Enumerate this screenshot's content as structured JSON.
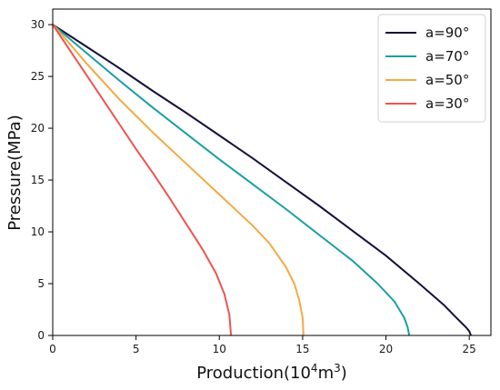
{
  "chart_data": {
    "type": "line",
    "title": "",
    "xlabel": "Production(10",
    "xlabel_sup": "4",
    "xlabel_mid": "m",
    "xlabel_sup2": "3",
    "xlabel_end": ")",
    "ylabel": "Pressure(MPa)",
    "xlim": [
      0,
      26.3
    ],
    "ylim": [
      0,
      31.5
    ],
    "xticks": [
      0,
      5,
      10,
      15,
      20,
      25
    ],
    "yticks": [
      0,
      5,
      10,
      15,
      20,
      25,
      30
    ],
    "grid": false,
    "legend_position": "top-right",
    "series": [
      {
        "name": "a=90°",
        "color": "#14103b",
        "points": [
          [
            0,
            30
          ],
          [
            2,
            27.9
          ],
          [
            4,
            25.8
          ],
          [
            6,
            23.6
          ],
          [
            8,
            21.5
          ],
          [
            10,
            19.3
          ],
          [
            12,
            17.1
          ],
          [
            14,
            14.8
          ],
          [
            16,
            12.5
          ],
          [
            18,
            10.1
          ],
          [
            20,
            7.7
          ],
          [
            22,
            5.0
          ],
          [
            23.5,
            2.9
          ],
          [
            24.3,
            1.6
          ],
          [
            24.8,
            0.8
          ],
          [
            25.0,
            0.4
          ],
          [
            25.1,
            0
          ]
        ]
      },
      {
        "name": "a=70°",
        "color": "#1a9ea5",
        "points": [
          [
            0,
            30
          ],
          [
            2,
            27.3
          ],
          [
            4,
            24.6
          ],
          [
            6,
            22.0
          ],
          [
            8,
            19.5
          ],
          [
            10,
            17.0
          ],
          [
            12,
            14.6
          ],
          [
            14,
            12.2
          ],
          [
            16,
            9.7
          ],
          [
            18,
            7.2
          ],
          [
            19.5,
            5.0
          ],
          [
            20.5,
            3.3
          ],
          [
            21.1,
            1.7
          ],
          [
            21.3,
            0.8
          ],
          [
            21.4,
            0
          ]
        ]
      },
      {
        "name": "a=50°",
        "color": "#f5a942",
        "points": [
          [
            0,
            30
          ],
          [
            1,
            28.2
          ],
          [
            2,
            26.3
          ],
          [
            4,
            22.8
          ],
          [
            6,
            19.6
          ],
          [
            8,
            16.6
          ],
          [
            10,
            13.6
          ],
          [
            12,
            10.6
          ],
          [
            13,
            8.9
          ],
          [
            14,
            6.6
          ],
          [
            14.5,
            5.0
          ],
          [
            14.8,
            3.4
          ],
          [
            15.0,
            1.7
          ],
          [
            15.05,
            0
          ]
        ]
      },
      {
        "name": "a=30°",
        "color": "#ef5350",
        "points": [
          [
            0,
            30
          ],
          [
            1,
            27.6
          ],
          [
            2,
            25.2
          ],
          [
            3,
            22.8
          ],
          [
            4,
            20.4
          ],
          [
            5,
            18.0
          ],
          [
            6,
            15.7
          ],
          [
            7,
            13.3
          ],
          [
            8,
            10.8
          ],
          [
            9,
            8.3
          ],
          [
            9.8,
            6.0
          ],
          [
            10.3,
            4.0
          ],
          [
            10.6,
            2.0
          ],
          [
            10.7,
            0
          ]
        ]
      }
    ]
  }
}
